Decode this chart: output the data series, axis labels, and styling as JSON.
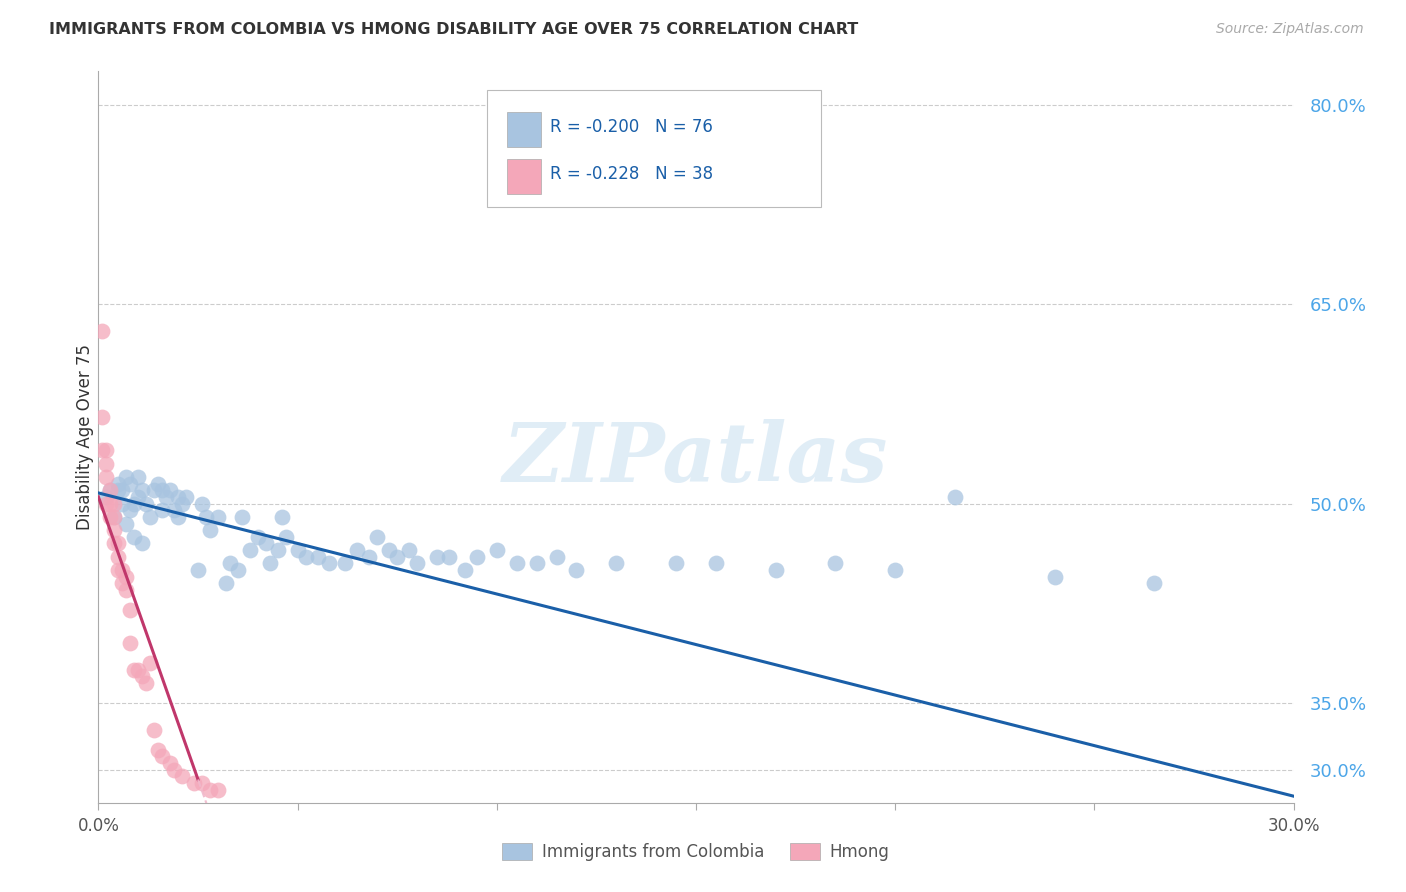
{
  "title": "IMMIGRANTS FROM COLOMBIA VS HMONG DISABILITY AGE OVER 75 CORRELATION CHART",
  "source": "Source: ZipAtlas.com",
  "ylabel": "Disability Age Over 75",
  "xlim": [
    0.0,
    0.3
  ],
  "ylim": [
    0.275,
    0.825
  ],
  "yticks": [
    0.3,
    0.35,
    0.5,
    0.65,
    0.8
  ],
  "ytick_labels": [
    "30.0%",
    "35.0%",
    "50.0%",
    "65.0%",
    "80.0%"
  ],
  "xticks": [
    0.0,
    0.05,
    0.1,
    0.15,
    0.2,
    0.25,
    0.3
  ],
  "colombia_R": -0.2,
  "colombia_N": 76,
  "hmong_R": -0.228,
  "hmong_N": 38,
  "colombia_color": "#a8c4e0",
  "hmong_color": "#f4a7b9",
  "colombia_line_color": "#1a5fa8",
  "hmong_line_color": "#c0376b",
  "hmong_dash_color": "#f0b8cb",
  "background_color": "#ffffff",
  "watermark": "ZIPatlas",
  "colombia_x": [
    0.002,
    0.003,
    0.004,
    0.005,
    0.005,
    0.006,
    0.006,
    0.007,
    0.007,
    0.008,
    0.008,
    0.009,
    0.009,
    0.01,
    0.01,
    0.011,
    0.011,
    0.012,
    0.013,
    0.014,
    0.015,
    0.016,
    0.016,
    0.017,
    0.018,
    0.019,
    0.02,
    0.02,
    0.021,
    0.022,
    0.025,
    0.026,
    0.027,
    0.028,
    0.03,
    0.032,
    0.033,
    0.035,
    0.036,
    0.038,
    0.04,
    0.042,
    0.043,
    0.045,
    0.046,
    0.047,
    0.05,
    0.052,
    0.055,
    0.058,
    0.062,
    0.065,
    0.068,
    0.07,
    0.073,
    0.075,
    0.078,
    0.08,
    0.085,
    0.088,
    0.092,
    0.095,
    0.1,
    0.105,
    0.11,
    0.115,
    0.12,
    0.13,
    0.145,
    0.155,
    0.17,
    0.185,
    0.2,
    0.215,
    0.24,
    0.265
  ],
  "colombia_y": [
    0.505,
    0.51,
    0.49,
    0.51,
    0.515,
    0.5,
    0.51,
    0.485,
    0.52,
    0.515,
    0.495,
    0.5,
    0.475,
    0.505,
    0.52,
    0.47,
    0.51,
    0.5,
    0.49,
    0.51,
    0.515,
    0.51,
    0.495,
    0.505,
    0.51,
    0.495,
    0.49,
    0.505,
    0.5,
    0.505,
    0.45,
    0.5,
    0.49,
    0.48,
    0.49,
    0.44,
    0.455,
    0.45,
    0.49,
    0.465,
    0.475,
    0.47,
    0.455,
    0.465,
    0.49,
    0.475,
    0.465,
    0.46,
    0.46,
    0.455,
    0.455,
    0.465,
    0.46,
    0.475,
    0.465,
    0.46,
    0.465,
    0.455,
    0.46,
    0.46,
    0.45,
    0.46,
    0.465,
    0.455,
    0.455,
    0.46,
    0.45,
    0.455,
    0.455,
    0.455,
    0.45,
    0.455,
    0.45,
    0.505,
    0.445,
    0.44
  ],
  "hmong_x": [
    0.001,
    0.001,
    0.001,
    0.002,
    0.002,
    0.002,
    0.002,
    0.003,
    0.003,
    0.003,
    0.004,
    0.004,
    0.004,
    0.004,
    0.005,
    0.005,
    0.005,
    0.006,
    0.006,
    0.007,
    0.007,
    0.008,
    0.008,
    0.009,
    0.01,
    0.011,
    0.012,
    0.013,
    0.014,
    0.015,
    0.016,
    0.018,
    0.019,
    0.021,
    0.024,
    0.026,
    0.028,
    0.03
  ],
  "hmong_y": [
    0.63,
    0.565,
    0.54,
    0.54,
    0.53,
    0.52,
    0.5,
    0.51,
    0.5,
    0.49,
    0.5,
    0.49,
    0.48,
    0.47,
    0.47,
    0.46,
    0.45,
    0.45,
    0.44,
    0.445,
    0.435,
    0.42,
    0.395,
    0.375,
    0.375,
    0.37,
    0.365,
    0.38,
    0.33,
    0.315,
    0.31,
    0.305,
    0.3,
    0.295,
    0.29,
    0.29,
    0.285,
    0.285
  ]
}
